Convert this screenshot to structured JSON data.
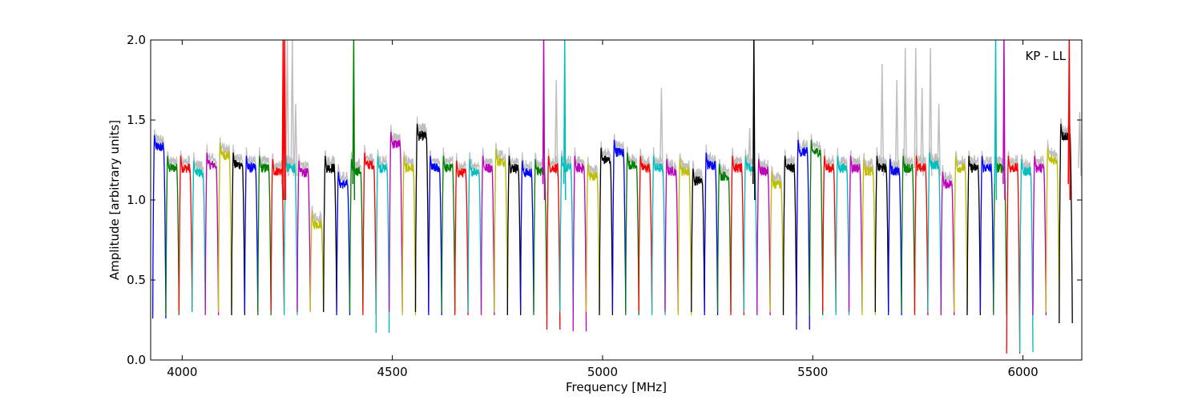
{
  "chart_data": {
    "type": "line",
    "title": "",
    "xlabel": "Frequency [MHz]",
    "ylabel": "Amplitude [arbitrary units]",
    "xlim": [
      3925,
      6140
    ],
    "ylim": [
      0.0,
      2.0
    ],
    "x_ticks": [
      4000,
      4500,
      5000,
      5500,
      6000
    ],
    "y_ticks": [
      0.0,
      0.5,
      1.0,
      1.5,
      2.0
    ],
    "x_tick_labels": [
      "4000",
      "4500",
      "5000",
      "5500",
      "6000"
    ],
    "y_tick_labels": [
      "0.0",
      "0.5",
      "1.0",
      "1.5",
      "2.0"
    ],
    "annotation": "KP - LL",
    "grid": false,
    "band_start": 3930,
    "band_width": 31.25,
    "band_count": 70,
    "band_levels": [
      1.33,
      1.2,
      1.2,
      1.17,
      1.22,
      1.28,
      1.22,
      1.2,
      1.2,
      1.18,
      1.2,
      1.17,
      0.85,
      1.2,
      1.1,
      1.18,
      1.22,
      1.2,
      1.35,
      1.2,
      1.4,
      1.2,
      1.2,
      1.17,
      1.18,
      1.2,
      1.24,
      1.2,
      1.17,
      1.18,
      1.2,
      1.2,
      1.2,
      1.15,
      1.25,
      1.3,
      1.22,
      1.2,
      1.2,
      1.18,
      1.18,
      1.12,
      1.22,
      1.15,
      1.2,
      1.2,
      1.18,
      1.1,
      1.2,
      1.3,
      1.3,
      1.2,
      1.2,
      1.2,
      1.18,
      1.2,
      1.18,
      1.2,
      1.2,
      1.22,
      1.1,
      1.2,
      1.2,
      1.2,
      1.2,
      1.2,
      1.18,
      1.2,
      1.25,
      1.4
    ],
    "band_dips": [
      0.26,
      0.28,
      0.3,
      0.3,
      0.28,
      0.3,
      0.28,
      0.3,
      0.28,
      0.3,
      0.28,
      0.3,
      0.3,
      0.3,
      0.28,
      0.3,
      0.28,
      0.17,
      0.3,
      0.28,
      0.3,
      0.28,
      0.3,
      0.28,
      0.3,
      0.28,
      0.3,
      0.28,
      0.3,
      0.28,
      0.19,
      0.3,
      0.18,
      0.3,
      0.28,
      0.3,
      0.28,
      0.3,
      0.28,
      0.3,
      0.28,
      0.3,
      0.28,
      0.3,
      0.28,
      0.3,
      0.28,
      0.3,
      0.28,
      0.19,
      0.28,
      0.3,
      0.28,
      0.3,
      0.28,
      0.3,
      0.28,
      0.3,
      0.28,
      0.3,
      0.28,
      0.3,
      0.28,
      0.3,
      0.28,
      0.04,
      0.05,
      0.28,
      0.3,
      0.23
    ],
    "series_colors": [
      "#0000ff",
      "#008000",
      "#ff0000",
      "#00bfbf",
      "#bf00bf",
      "#bfbf00",
      "#000000"
    ],
    "grey_color": "#bfbfbf",
    "grey_spikes": [
      {
        "x": 4250,
        "y": 2.0
      },
      {
        "x": 4262,
        "y": 2.0
      },
      {
        "x": 4270,
        "y": 1.6
      },
      {
        "x": 4890,
        "y": 1.75
      },
      {
        "x": 5140,
        "y": 1.7
      },
      {
        "x": 5350,
        "y": 1.45
      },
      {
        "x": 5665,
        "y": 1.85
      },
      {
        "x": 5700,
        "y": 1.75
      },
      {
        "x": 5720,
        "y": 1.95
      },
      {
        "x": 5745,
        "y": 1.95
      },
      {
        "x": 5760,
        "y": 1.7
      },
      {
        "x": 5780,
        "y": 1.95
      },
      {
        "x": 5800,
        "y": 1.6
      },
      {
        "x": 6135,
        "y": 1.55
      }
    ],
    "color_spikes": [
      {
        "x": 4240,
        "y": 2.0,
        "color": "#ff0000"
      },
      {
        "x": 4244,
        "y": 2.0,
        "color": "#ff0000"
      },
      {
        "x": 4408,
        "y": 2.0,
        "color": "#008000"
      },
      {
        "x": 4860,
        "y": 2.0,
        "color": "#bf00bf"
      },
      {
        "x": 4910,
        "y": 2.0,
        "color": "#00bfbf"
      },
      {
        "x": 5360,
        "y": 2.0,
        "color": "#000000"
      },
      {
        "x": 5935,
        "y": 2.0,
        "color": "#00bfbf"
      },
      {
        "x": 5955,
        "y": 2.0,
        "color": "#bf00bf"
      },
      {
        "x": 6110,
        "y": 2.0,
        "color": "#ff0000"
      }
    ]
  }
}
